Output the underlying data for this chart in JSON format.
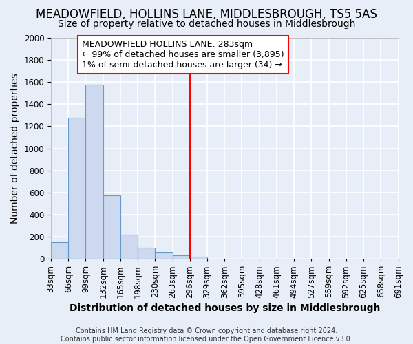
{
  "title": "MEADOWFIELD, HOLLINS LANE, MIDDLESBROUGH, TS5 5AS",
  "subtitle": "Size of property relative to detached houses in Middlesbrough",
  "xlabel": "Distribution of detached houses by size in Middlesbrough",
  "ylabel": "Number of detached properties",
  "footnote": "Contains HM Land Registry data © Crown copyright and database right 2024.\nContains public sector information licensed under the Open Government Licence v3.0.",
  "bin_labels": [
    "33sqm",
    "66sqm",
    "99sqm",
    "132sqm",
    "165sqm",
    "198sqm",
    "230sqm",
    "263sqm",
    "296sqm",
    "329sqm",
    "362sqm",
    "395sqm",
    "428sqm",
    "461sqm",
    "494sqm",
    "527sqm",
    "559sqm",
    "592sqm",
    "625sqm",
    "658sqm",
    "691sqm"
  ],
  "bar_values": [
    150,
    1275,
    1575,
    575,
    220,
    100,
    55,
    30,
    20,
    0,
    0,
    0,
    0,
    0,
    0,
    0,
    0,
    0,
    0,
    0
  ],
  "bar_color": "#ccd9ee",
  "bar_edgecolor": "#6699cc",
  "vline_x_index": 8,
  "vline_color": "red",
  "ylim": [
    0,
    2000
  ],
  "yticks": [
    0,
    200,
    400,
    600,
    800,
    1000,
    1200,
    1400,
    1600,
    1800,
    2000
  ],
  "annotation_text": "MEADOWFIELD HOLLINS LANE: 283sqm\n← 99% of detached houses are smaller (3,895)\n1% of semi-detached houses are larger (34) →",
  "annotation_box_color": "white",
  "annotation_box_edgecolor": "red",
  "background_color": "#e8eef8",
  "grid_color": "white",
  "title_fontsize": 12,
  "subtitle_fontsize": 10,
  "axis_fontsize": 10,
  "tick_fontsize": 8.5,
  "annot_fontsize": 9
}
